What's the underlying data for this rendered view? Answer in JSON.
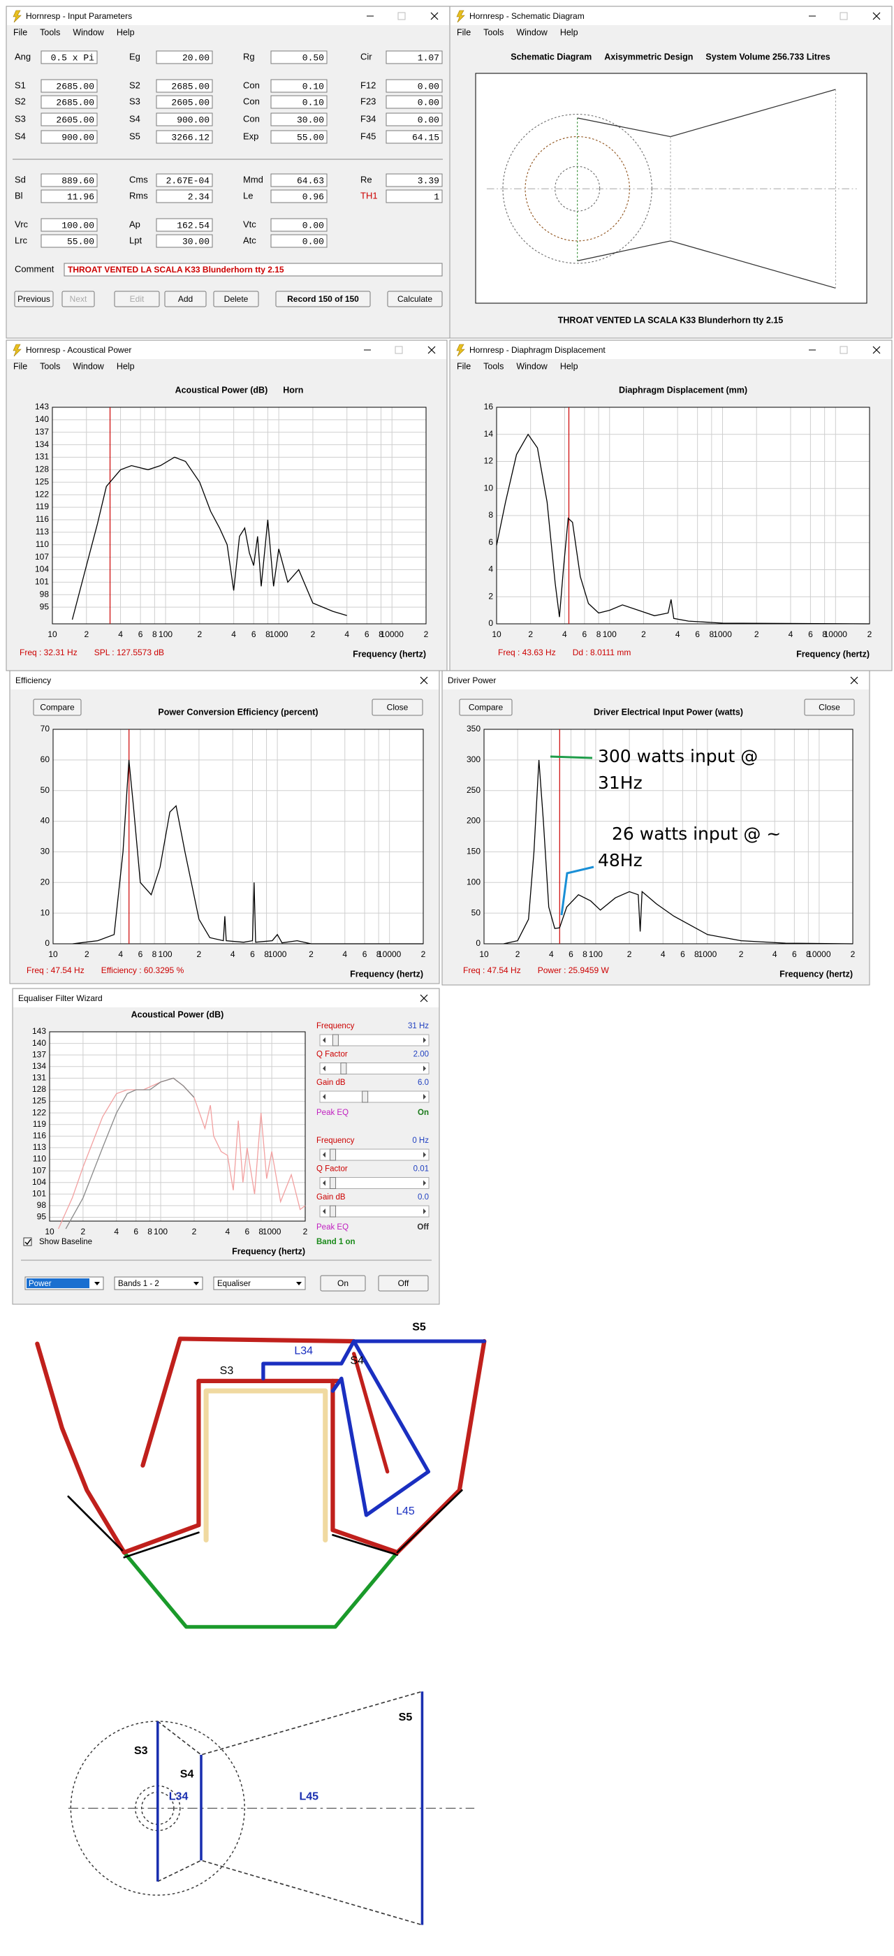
{
  "input_parameters": {
    "window_title": "Hornresp - Input Parameters",
    "menu": [
      "File",
      "Tools",
      "Window",
      "Help"
    ],
    "rows": [
      [
        {
          "label": "Ang",
          "value": "0.5 x Pi"
        },
        {
          "label": "Eg",
          "value": "20.00"
        },
        {
          "label": "Rg",
          "value": "0.50"
        },
        {
          "label": "Cir",
          "value": "1.07"
        }
      ],
      [
        {
          "label": "S1",
          "value": "2685.00"
        },
        {
          "label": "S2",
          "value": "2685.00"
        },
        {
          "label": "Con",
          "value": "0.10"
        },
        {
          "label": "F12",
          "value": "0.00"
        }
      ],
      [
        {
          "label": "S2",
          "value": "2685.00"
        },
        {
          "label": "S3",
          "value": "2605.00"
        },
        {
          "label": "Con",
          "value": "0.10"
        },
        {
          "label": "F23",
          "value": "0.00"
        }
      ],
      [
        {
          "label": "S3",
          "value": "2605.00"
        },
        {
          "label": "S4",
          "value": "900.00"
        },
        {
          "label": "Con",
          "value": "30.00"
        },
        {
          "label": "F34",
          "value": "0.00"
        }
      ],
      [
        {
          "label": "S4",
          "value": "900.00"
        },
        {
          "label": "S5",
          "value": "3266.12"
        },
        {
          "label": "Exp",
          "value": "55.00"
        },
        {
          "label": "F45",
          "value": "64.15"
        }
      ],
      [
        {
          "label": "Sd",
          "value": "889.60"
        },
        {
          "label": "Cms",
          "value": "2.67E-04"
        },
        {
          "label": "Mmd",
          "value": "64.63"
        },
        {
          "label": "Re",
          "value": "3.39"
        }
      ],
      [
        {
          "label": "Bl",
          "value": "11.96"
        },
        {
          "label": "Rms",
          "value": "2.34"
        },
        {
          "label": "Le",
          "value": "0.96"
        },
        {
          "label": "TH1",
          "value": "1",
          "color": "#cc0000"
        }
      ],
      [
        {
          "label": "Vrc",
          "value": "100.00"
        },
        {
          "label": "Ap",
          "value": "162.54"
        },
        {
          "label": "Vtc",
          "value": "0.00"
        }
      ],
      [
        {
          "label": "Lrc",
          "value": "55.00"
        },
        {
          "label": "Lpt",
          "value": "30.00"
        },
        {
          "label": "Atc",
          "value": "0.00"
        }
      ]
    ],
    "comment_label": "Comment",
    "comment": "THROAT VENTED LA SCALA K33 Blunderhorn tty 2.15",
    "buttons": [
      "Previous",
      "Next",
      "Edit",
      "Add",
      "Delete",
      "Record 150 of 150",
      "Calculate"
    ]
  },
  "schematic": {
    "window_title": "Hornresp - Schematic Diagram",
    "menu": [
      "File",
      "Tools",
      "Window",
      "Help"
    ],
    "header": [
      "Schematic Diagram",
      "Axisymmetric Design",
      "System Volume 256.733 Litres"
    ],
    "caption": "THROAT VENTED LA SCALA K33 Blunderhorn tty 2.15"
  },
  "acoustical_power": {
    "window_title": "Hornresp - Acoustical Power",
    "menu": [
      "File",
      "Tools",
      "Window",
      "Help"
    ],
    "chart": {
      "type": "line",
      "heading": [
        "Acoustical Power (dB)",
        "Horn"
      ],
      "xlog": true,
      "grid": true,
      "xlim": [
        10,
        20000
      ],
      "xticks": [
        10,
        {
          "value": 20,
          "label": "2"
        },
        {
          "value": 40,
          "label": "4"
        },
        {
          "value": 60,
          "label": "6"
        },
        {
          "value": 80,
          "label": "8"
        },
        100,
        {
          "value": 200,
          "label": "2"
        },
        {
          "value": 400,
          "label": "4"
        },
        {
          "value": 600,
          "label": "6"
        },
        {
          "value": 800,
          "label": "8"
        },
        1000,
        {
          "value": 2000,
          "label": "2"
        },
        {
          "value": 4000,
          "label": "4"
        },
        {
          "value": 6000,
          "label": "6"
        },
        {
          "value": 8000,
          "label": "8"
        },
        10000,
        {
          "value": 20000,
          "label": "2"
        }
      ],
      "ylim": [
        91,
        143
      ],
      "yticks": [
        95,
        98,
        101,
        104,
        107,
        110,
        113,
        116,
        119,
        122,
        125,
        128,
        131,
        134,
        137,
        140,
        143
      ],
      "series": [
        {
          "color": "#000000",
          "x": [
            15,
            20,
            25,
            30,
            40,
            50,
            70,
            90,
            120,
            150,
            200,
            250,
            300,
            350,
            400,
            450,
            500,
            550,
            600,
            650,
            700,
            800,
            900,
            1000,
            1200,
            1500,
            2000,
            3000,
            4000
          ],
          "values": [
            92,
            105,
            115,
            124,
            128,
            129,
            128,
            129,
            131,
            130,
            125,
            118,
            114,
            110,
            99,
            112,
            114,
            108,
            105,
            112,
            100,
            116,
            100,
            109,
            101,
            104,
            96,
            94,
            93
          ]
        }
      ],
      "cursor_x": 32.31,
      "cursor_color": "#cc0000",
      "footer": [
        "Freq : 32.31 Hz",
        "SPL : 127.5573 dB"
      ],
      "xlabel": "Frequency (hertz)"
    }
  },
  "displacement": {
    "window_title": "Hornresp - Diaphragm Displacement",
    "menu": [
      "File",
      "Tools",
      "Window",
      "Help"
    ],
    "chart": {
      "type": "line",
      "heading": [
        "Diaphragm Displacement (mm)"
      ],
      "xlog": true,
      "grid": true,
      "xlim": [
        10,
        20000
      ],
      "xticks": [
        10,
        {
          "value": 20,
          "label": "2"
        },
        {
          "value": 40,
          "label": "4"
        },
        {
          "value": 60,
          "label": "6"
        },
        {
          "value": 80,
          "label": "8"
        },
        100,
        {
          "value": 200,
          "label": "2"
        },
        {
          "value": 400,
          "label": "4"
        },
        {
          "value": 600,
          "label": "6"
        },
        {
          "value": 800,
          "label": "8"
        },
        1000,
        {
          "value": 2000,
          "label": "2"
        },
        {
          "value": 4000,
          "label": "4"
        },
        {
          "value": 6000,
          "label": "6"
        },
        {
          "value": 8000,
          "label": "8"
        },
        10000,
        {
          "value": 20000,
          "label": "2"
        }
      ],
      "ylim": [
        0,
        16
      ],
      "yticks": [
        0,
        2,
        4,
        6,
        8,
        10,
        12,
        14,
        16
      ],
      "series": [
        {
          "color": "#000000",
          "x": [
            10,
            12,
            15,
            19,
            23,
            28,
            33,
            36,
            39,
            43,
            47,
            55,
            65,
            80,
            100,
            130,
            180,
            250,
            330,
            350,
            370,
            500,
            1000,
            20000
          ],
          "values": [
            5.8,
            9,
            12.5,
            14,
            13,
            9,
            3,
            0.5,
            4,
            7.8,
            7.5,
            3.5,
            1.5,
            0.8,
            1,
            1.4,
            1,
            0.6,
            0.8,
            1.8,
            0.4,
            0.2,
            0.05,
            0
          ]
        }
      ],
      "cursor_x": 43.63,
      "cursor_color": "#cc0000",
      "footer": [
        "Freq : 43.63 Hz",
        "Dd : 8.0111 mm"
      ],
      "xlabel": "Frequency (hertz)"
    }
  },
  "efficiency": {
    "window_title": "Efficiency",
    "buttons": [
      "Compare",
      "Close"
    ],
    "chart": {
      "type": "line",
      "heading": [
        "Power Conversion Efficiency (percent)"
      ],
      "xlog": true,
      "grid": true,
      "xlim": [
        10,
        20000
      ],
      "xticks": [
        10,
        {
          "value": 20,
          "label": "2"
        },
        {
          "value": 40,
          "label": "4"
        },
        {
          "value": 60,
          "label": "6"
        },
        {
          "value": 80,
          "label": "8"
        },
        100,
        {
          "value": 200,
          "label": "2"
        },
        {
          "value": 400,
          "label": "4"
        },
        {
          "value": 600,
          "label": "6"
        },
        {
          "value": 800,
          "label": "8"
        },
        1000,
        {
          "value": 2000,
          "label": "2"
        },
        {
          "value": 4000,
          "label": "4"
        },
        {
          "value": 6000,
          "label": "6"
        },
        {
          "value": 8000,
          "label": "8"
        },
        10000,
        {
          "value": 20000,
          "label": "2"
        }
      ],
      "ylim": [
        0,
        70
      ],
      "yticks": [
        0,
        10,
        20,
        30,
        40,
        50,
        60,
        70
      ],
      "series": [
        {
          "color": "#000000",
          "x": [
            15,
            25,
            35,
            42,
            47.5,
            52,
            60,
            75,
            90,
            110,
            125,
            150,
            200,
            250,
            330,
            340,
            350,
            500,
            600,
            620,
            640,
            900,
            1000,
            1100,
            1500,
            2000,
            20000
          ],
          "values": [
            0,
            1,
            3,
            30,
            60,
            45,
            20,
            16,
            25,
            43,
            45,
            30,
            8,
            2,
            1,
            9,
            1,
            0.5,
            1,
            20,
            0.5,
            1,
            3,
            0.3,
            1,
            0,
            0
          ]
        }
      ],
      "cursor_x": 47.54,
      "cursor_color": "#cc0000",
      "footer": [
        "Freq : 47.54 Hz",
        "Efficiency : 60.3295 %"
      ],
      "xlabel": "Frequency (hertz)"
    }
  },
  "driver_power": {
    "window_title": "Driver Power",
    "buttons": [
      "Compare",
      "Close"
    ],
    "chart": {
      "type": "line",
      "heading": [
        "Driver Electrical Input Power (watts)"
      ],
      "xlog": true,
      "grid": true,
      "xlim": [
        10,
        20000
      ],
      "xticks": [
        10,
        {
          "value": 20,
          "label": "2"
        },
        {
          "value": 40,
          "label": "4"
        },
        {
          "value": 60,
          "label": "6"
        },
        {
          "value": 80,
          "label": "8"
        },
        100,
        {
          "value": 200,
          "label": "2"
        },
        {
          "value": 400,
          "label": "4"
        },
        {
          "value": 600,
          "label": "6"
        },
        {
          "value": 800,
          "label": "8"
        },
        1000,
        {
          "value": 2000,
          "label": "2"
        },
        {
          "value": 4000,
          "label": "4"
        },
        {
          "value": 6000,
          "label": "6"
        },
        {
          "value": 8000,
          "label": "8"
        },
        10000,
        {
          "value": 20000,
          "label": "2"
        }
      ],
      "ylim": [
        0,
        350
      ],
      "yticks": [
        0,
        50,
        100,
        150,
        200,
        250,
        300,
        350
      ],
      "series": [
        {
          "color": "#000000",
          "x": [
            15,
            20,
            25,
            28,
            31,
            34,
            38,
            43,
            47.5,
            55,
            70,
            90,
            110,
            150,
            200,
            240,
            250,
            260,
            350,
            500,
            1000,
            2000,
            5000,
            20000
          ],
          "values": [
            0,
            5,
            40,
            150,
            300,
            200,
            60,
            25,
            26,
            60,
            80,
            70,
            55,
            75,
            85,
            80,
            20,
            85,
            65,
            45,
            15,
            5,
            1,
            0
          ]
        }
      ],
      "cursor_x": 47.54,
      "cursor_color": "#cc0000",
      "footer": [
        "Freq : 47.54 Hz",
        "Power : 25.9459 W"
      ],
      "xlabel": "Frequency (hertz)",
      "annotations": [
        {
          "lines": [
            "300 watts input @",
            "31Hz"
          ],
          "color": "#1f9d4a"
        },
        {
          "lines": [
            "26 watts input @ ~",
            "48Hz"
          ],
          "color": "#1a8fd6"
        }
      ]
    }
  },
  "equaliser": {
    "window_title": "Equaliser Filter Wizard",
    "chart": {
      "type": "line",
      "heading": [
        "Acoustical Power (dB)"
      ],
      "xlog": true,
      "grid": true,
      "xlim": [
        10,
        2000
      ],
      "xticks": [
        10,
        {
          "value": 20,
          "label": "2"
        },
        {
          "value": 40,
          "label": "4"
        },
        {
          "value": 60,
          "label": "6"
        },
        {
          "value": 80,
          "label": "8"
        },
        100,
        {
          "value": 200,
          "label": "2"
        },
        {
          "value": 400,
          "label": "4"
        },
        {
          "value": 600,
          "label": "6"
        },
        {
          "value": 800,
          "label": "8"
        },
        1000,
        {
          "value": 2000,
          "label": "2"
        }
      ],
      "ylim": [
        94,
        143
      ],
      "yticks": [
        95,
        98,
        101,
        104,
        107,
        110,
        113,
        116,
        119,
        122,
        125,
        128,
        131,
        134,
        137,
        140,
        143
      ],
      "series": [
        {
          "color": "#f2a0a0",
          "x": [
            12,
            16,
            20,
            30,
            40,
            50,
            70,
            100,
            130,
            160,
            200,
            250,
            280,
            300,
            350,
            400,
            450,
            500,
            550,
            600,
            700,
            800,
            900,
            1000,
            1200,
            1500,
            1800,
            2000
          ],
          "values": [
            92,
            100,
            108,
            121,
            127,
            128,
            128,
            130,
            131,
            129,
            126,
            118,
            124,
            116,
            112,
            111,
            102,
            120,
            104,
            113,
            101,
            122,
            105,
            112,
            99,
            106,
            97,
            98
          ]
        },
        {
          "color": "#888888",
          "x": [
            14,
            20,
            30,
            40,
            50,
            60,
            80,
            100,
            130,
            160,
            200
          ],
          "values": [
            92,
            100,
            113,
            122,
            127,
            128,
            128,
            130,
            131,
            129,
            126
          ]
        }
      ],
      "xlabel": "Frequency (hertz)"
    },
    "bands": [
      {
        "frequency_label": "Frequency",
        "frequency": "31 Hz",
        "q_label": "Q Factor",
        "q": "2.00",
        "gain_label": "Gain  dB",
        "gain": "6.0",
        "mode": "Peak EQ",
        "state": "On"
      },
      {
        "frequency_label": "Frequency",
        "frequency": "0 Hz",
        "q_label": "Q Factor",
        "q": "0.01",
        "gain_label": "Gain  dB",
        "gain": "0.0",
        "mode": "Peak EQ",
        "state": "Off"
      }
    ],
    "band_status": "Band 1 on",
    "show_baseline": "Show Baseline",
    "dropdowns": [
      "Power",
      "Bands 1 - 2",
      "Equaliser"
    ],
    "buttons": [
      "On",
      "Off"
    ]
  },
  "drawing_1": {
    "labels": [
      "S5",
      "L34",
      "S3",
      "S4",
      "L45"
    ]
  },
  "drawing_2": {
    "labels": [
      "S3",
      "S4",
      "L34",
      "L45",
      "S5"
    ]
  }
}
